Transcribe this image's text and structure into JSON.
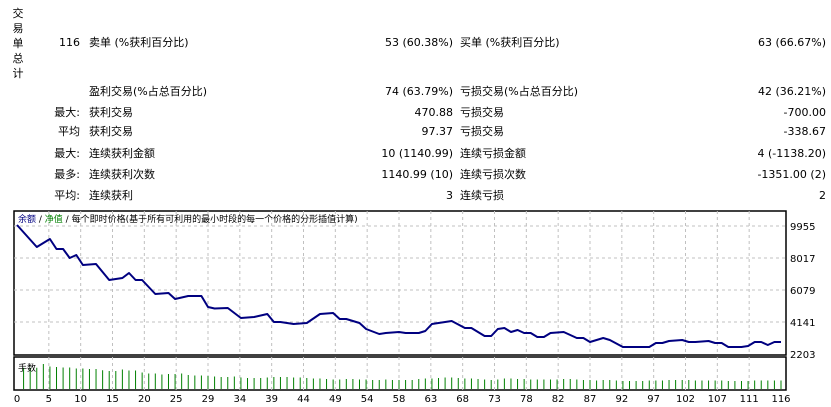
{
  "summary": {
    "section_label": "交易单总计",
    "rows": [
      {
        "c1": "116",
        "c2": "卖单 (%获利百分比)",
        "c3": "53 (60.38%)",
        "c4": "买单 (%获利百分比)",
        "c5": "63 (66.67%)"
      },
      {
        "c1": "",
        "c2": "盈利交易(%占总百分比)",
        "c3": "74 (63.79%)",
        "c4": "亏损交易(%占总百分比)",
        "c5": "42 (36.21%)"
      },
      {
        "c1": "最大:",
        "c2": "获利交易",
        "c3": "470.88",
        "c4": "亏损交易",
        "c5": "-700.00"
      },
      {
        "c1": "平均",
        "c2": "获利交易",
        "c3": "97.37",
        "c4": "亏损交易",
        "c5": "-338.67"
      },
      {
        "c1": "最大:",
        "c2": "连续获利金额",
        "c3": "10 (1140.99)",
        "c4": "连续亏损金额",
        "c5": "4 (-1138.20)"
      },
      {
        "c1": "最多:",
        "c2": "连续获利次数",
        "c3": "1140.99 (10)",
        "c4": "连续亏损次数",
        "c5": "-1351.00 (2)"
      },
      {
        "c1": "平均:",
        "c2": "连续获利",
        "c3": "3",
        "c4": "连续亏损",
        "c5": "2"
      }
    ]
  },
  "chart_data": {
    "type": "line",
    "legend": {
      "balance": "余额",
      "sep1": " / ",
      "equity": "净值",
      "sep2": " / ",
      "model": "每个即时价格(基于所有可利用的最小时段的每一个价格的分形插值计算)"
    },
    "colors": {
      "balance": "#000080",
      "equity": "#008000",
      "volume": "#008000",
      "grid": "#c0c0c0"
    },
    "grid": true,
    "xlim": [
      0,
      116
    ],
    "ylim": [
      2203,
      10300
    ],
    "y_ticks": [
      "9955",
      "8017",
      "6079",
      "4141",
      "2203"
    ],
    "x_ticks": [
      "0",
      "5",
      "10",
      "15",
      "20",
      "25",
      "29",
      "34",
      "39",
      "44",
      "49",
      "54",
      "58",
      "63",
      "68",
      "73",
      "78",
      "82",
      "87",
      "92",
      "97",
      "102",
      "107",
      "111",
      "116"
    ],
    "balance": [
      [
        0,
        10016
      ],
      [
        3,
        8683
      ],
      [
        5,
        9168
      ],
      [
        6,
        8562
      ],
      [
        7,
        8562
      ],
      [
        8,
        8017
      ],
      [
        9,
        8199
      ],
      [
        10,
        7593
      ],
      [
        12,
        7654
      ],
      [
        14,
        6685
      ],
      [
        16,
        6806
      ],
      [
        17,
        7109
      ],
      [
        18,
        6685
      ],
      [
        19,
        6685
      ],
      [
        21,
        5837
      ],
      [
        23,
        5897
      ],
      [
        24,
        5534
      ],
      [
        26,
        5716
      ],
      [
        28,
        5716
      ],
      [
        29,
        5050
      ],
      [
        30,
        4960
      ],
      [
        32,
        4990
      ],
      [
        34,
        4384
      ],
      [
        36,
        4444
      ],
      [
        38,
        4626
      ],
      [
        39,
        4141
      ],
      [
        40,
        4141
      ],
      [
        42,
        4020
      ],
      [
        44,
        4080
      ],
      [
        46,
        4626
      ],
      [
        48,
        4687
      ],
      [
        49,
        4323
      ],
      [
        50,
        4323
      ],
      [
        52,
        4080
      ],
      [
        53,
        3717
      ],
      [
        55,
        3415
      ],
      [
        56,
        3475
      ],
      [
        58,
        3536
      ],
      [
        59,
        3475
      ],
      [
        60,
        3475
      ],
      [
        61,
        3475
      ],
      [
        62,
        3596
      ],
      [
        63,
        4020
      ],
      [
        65,
        4141
      ],
      [
        66,
        4202
      ],
      [
        68,
        3778
      ],
      [
        69,
        3778
      ],
      [
        71,
        3294
      ],
      [
        72,
        3294
      ],
      [
        73,
        3717
      ],
      [
        74,
        3778
      ],
      [
        75,
        3536
      ],
      [
        76,
        3657
      ],
      [
        77,
        3475
      ],
      [
        78,
        3475
      ],
      [
        79,
        3233
      ],
      [
        80,
        3233
      ],
      [
        81,
        3475
      ],
      [
        83,
        3536
      ],
      [
        85,
        3173
      ],
      [
        86,
        3173
      ],
      [
        87,
        2930
      ],
      [
        89,
        3173
      ],
      [
        90,
        3051
      ],
      [
        92,
        2627
      ],
      [
        96,
        2627
      ],
      [
        97,
        2870
      ],
      [
        98,
        2870
      ],
      [
        99,
        2990
      ],
      [
        101,
        3051
      ],
      [
        102,
        2930
      ],
      [
        103,
        2930
      ],
      [
        105,
        2990
      ],
      [
        106,
        2870
      ],
      [
        107,
        2870
      ],
      [
        108,
        2627
      ],
      [
        110,
        2627
      ],
      [
        111,
        2688
      ],
      [
        112,
        2930
      ],
      [
        113,
        2930
      ],
      [
        114,
        2749
      ],
      [
        115,
        2930
      ],
      [
        116,
        2930
      ]
    ],
    "volume_label": "手数",
    "volume_relative": [
      0.85,
      0.85,
      0.85,
      1.0,
      0.9,
      0.88,
      0.86,
      0.86,
      0.82,
      0.82,
      0.8,
      0.8,
      0.75,
      0.72,
      0.72,
      0.78,
      0.74,
      0.74,
      0.66,
      0.62,
      0.62,
      0.58,
      0.6,
      0.6,
      0.62,
      0.56,
      0.54,
      0.54,
      0.52,
      0.5,
      0.48,
      0.48,
      0.5,
      0.46,
      0.44,
      0.44,
      0.44,
      0.46,
      0.48,
      0.48,
      0.48,
      0.46,
      0.46,
      0.44,
      0.42,
      0.42,
      0.4,
      0.38,
      0.38,
      0.4,
      0.4,
      0.38,
      0.38,
      0.36,
      0.36,
      0.38,
      0.36,
      0.36,
      0.36,
      0.36,
      0.4,
      0.42,
      0.42,
      0.44,
      0.46,
      0.46,
      0.44,
      0.42,
      0.42,
      0.4,
      0.38,
      0.36,
      0.38,
      0.42,
      0.42,
      0.4,
      0.4,
      0.38,
      0.38,
      0.38,
      0.38,
      0.38,
      0.4,
      0.4,
      0.38,
      0.36,
      0.36,
      0.34,
      0.36,
      0.36,
      0.34,
      0.32,
      0.32,
      0.32,
      0.32,
      0.34,
      0.34,
      0.34,
      0.36,
      0.36,
      0.36,
      0.36,
      0.34,
      0.34,
      0.34,
      0.34,
      0.34,
      0.32,
      0.32,
      0.32,
      0.32,
      0.34,
      0.34,
      0.34,
      0.34,
      0.34
    ]
  }
}
